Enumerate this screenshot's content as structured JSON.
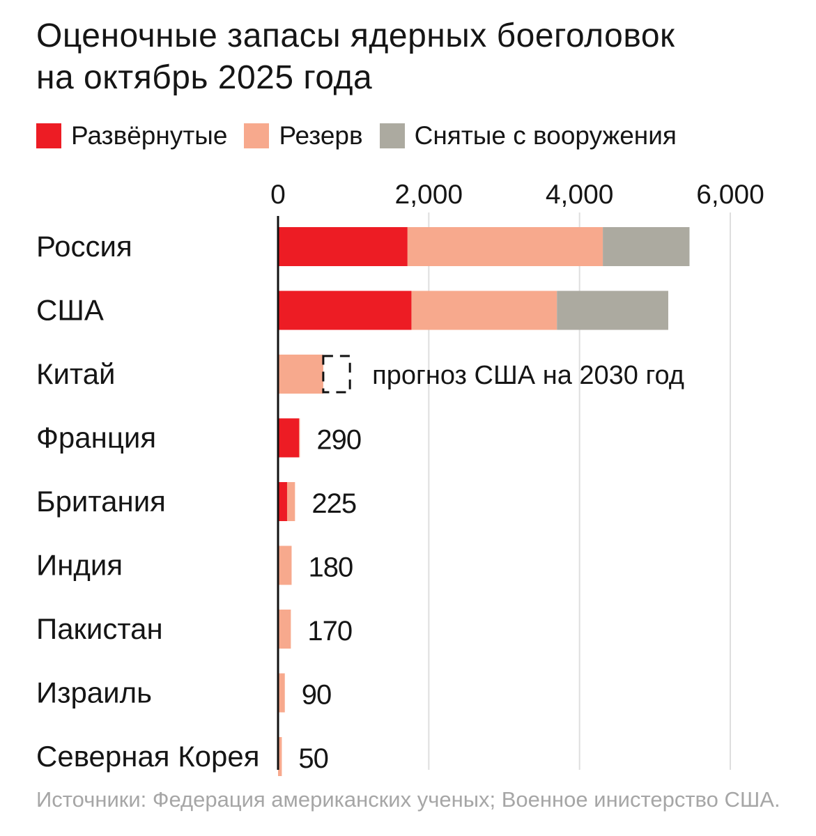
{
  "title": {
    "line1": "Оценочные запасы ядерных боеголовок",
    "line2": "на октябрь 2025 года"
  },
  "colors": {
    "deployed": "#ed1c24",
    "reserve": "#f7a98d",
    "retired": "#acaaa0",
    "axis": "#111111",
    "grid": "#dedede"
  },
  "chart_data": {
    "type": "bar",
    "orientation": "horizontal",
    "stacked": true,
    "categories": [
      "Россия",
      "США",
      "Китай",
      "Франция",
      "Британия",
      "Индия",
      "Пакистан",
      "Израиль",
      "Северная Корея"
    ],
    "series": [
      {
        "name": "Развёрнутые",
        "color": "#ed1c24",
        "values": [
          1718,
          1770,
          0,
          280,
          120,
          0,
          0,
          0,
          0
        ]
      },
      {
        "name": "Резерв",
        "color": "#f7a98d",
        "values": [
          2591,
          1930,
          600,
          10,
          105,
          180,
          170,
          90,
          50
        ]
      },
      {
        "name": "Снятые с вооружения",
        "color": "#acaaa0",
        "values": [
          1150,
          1477,
          0,
          0,
          0,
          0,
          0,
          0,
          0
        ]
      }
    ],
    "value_labels": [
      "",
      "",
      "",
      "290",
      "225",
      "180",
      "170",
      "90",
      "50"
    ],
    "projection": {
      "category": "Китай",
      "value": 1000,
      "label": "прогноз США на 2030 год"
    },
    "x_ticks": [
      0,
      2000,
      4000,
      6000
    ],
    "x_tick_labels": [
      "0",
      "2,000",
      "4,000",
      "6,000"
    ],
    "xlim": [
      0,
      6000
    ],
    "grid": true,
    "legend_position": "top-left"
  },
  "source": "Источники: Федерация американских ученых; Военное инистерство США."
}
